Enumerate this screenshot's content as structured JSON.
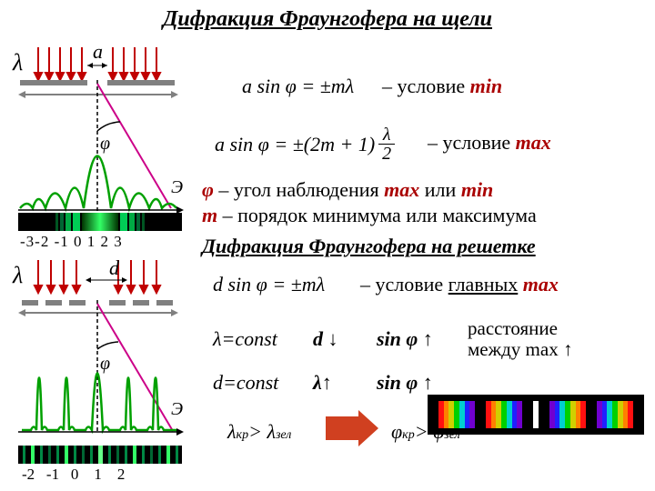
{
  "title": "Дифракция Фраунгофера на щели",
  "slit": {
    "lambda": "λ",
    "aperture_label": "a",
    "angle": "φ",
    "axis_label": "Э",
    "orders": "-3-2 -1  0  1  2  3",
    "colors": {
      "arrows": "#c00000",
      "wave": "#00a000",
      "ray": "#cc0088",
      "slit_bar": "#808080"
    }
  },
  "grating": {
    "lambda": "λ",
    "period_label": "d",
    "angle": "φ",
    "axis_label": "Э",
    "orders": "-2   -1   0    1    2"
  },
  "formulas": {
    "min": "a sin φ = ±mλ",
    "max_prefix": "a sin φ = ±(2m + 1)",
    "max_frac_top": "λ",
    "max_frac_bot": "2",
    "main_max": "d sin φ = ±mλ"
  },
  "conditions": {
    "min": "– условие ",
    "min_word": "min",
    "max": "– условие ",
    "max_word": "max",
    "main": "– условие ",
    "main_word1": "главных",
    "main_word2": " max"
  },
  "explain": {
    "phi_var": "φ",
    "phi_text": " – угол наблюдения ",
    "phi_max": "max",
    "phi_or": " или ",
    "phi_min": "min",
    "m_var": "m",
    "m_text": " – порядок минимума или максимума"
  },
  "subtitle2": "Дифракция Фраунгофера на решетке",
  "rows": {
    "r1": {
      "c1": "λ=const",
      "c2": "d ↓",
      "c3": "sin φ ↑",
      "c4a": "расстояние",
      "c4b": "между max ↑"
    },
    "r2": {
      "c1": "d=const",
      "c2": "λ↑",
      "c3": "sin φ ↑"
    }
  },
  "ineq": {
    "l1a": "λ",
    "l1asub": "кр",
    "l1b": "> λ",
    "l1bsub": "зел",
    "l2a": "φ",
    "l2asub": "кр",
    "l2b": "> φ",
    "l2bsub": "зел"
  },
  "spectrum_colors": [
    "#7000d0",
    "#2020ff",
    "#00d0d0",
    "#00d000",
    "#d0d000",
    "#ff8000",
    "#ff1010"
  ]
}
